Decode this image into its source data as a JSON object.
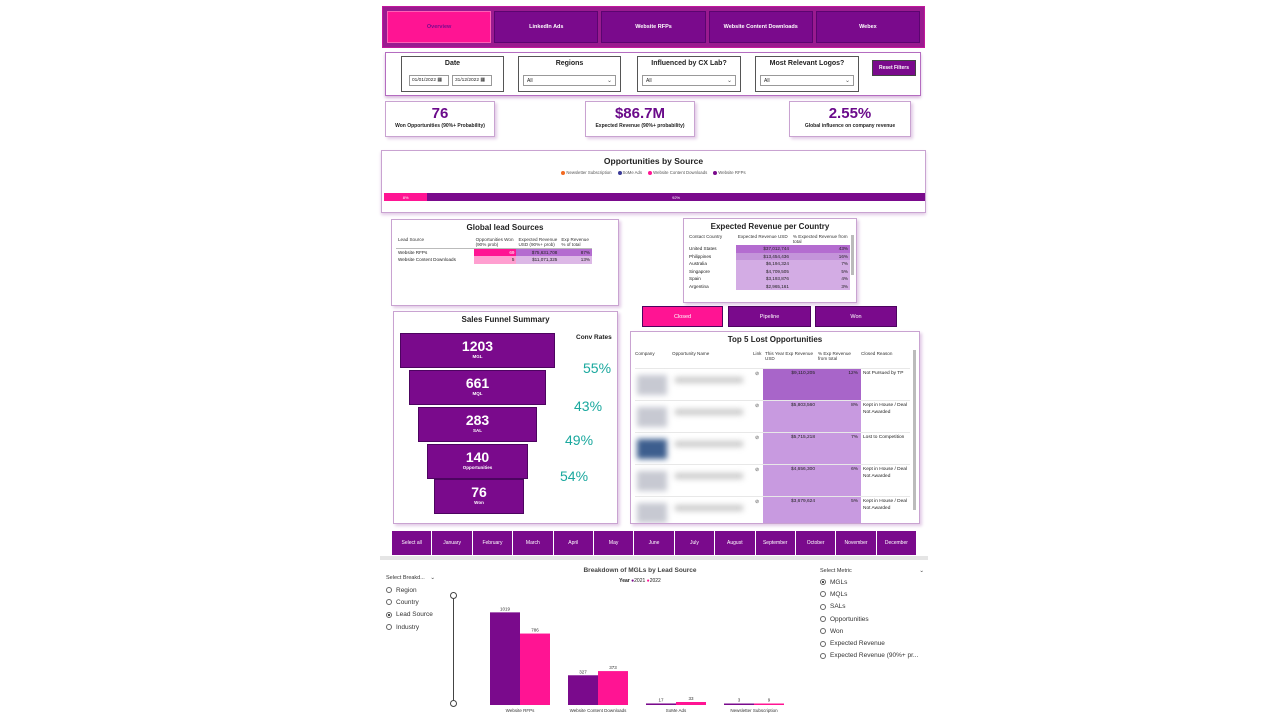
{
  "tabs": [
    "Overview",
    "LinkedIn Ads",
    "Website RFPs",
    "Website Content Downloads",
    "Webex"
  ],
  "filters": {
    "date_label": "Date",
    "date_from": "01/01/2022",
    "date_to": "31/12/2022",
    "regions_label": "Regions",
    "regions_value": "All",
    "cxlab_label": "Influenced by CX Lab?",
    "cxlab_value": "All",
    "logos_label": "Most Relevant Logos?",
    "logos_value": "All",
    "reset_label": "Reset Filters"
  },
  "kpis": [
    {
      "value": "76",
      "label": "Won Opportunities (90%+ Probability)"
    },
    {
      "value": "$86.7M",
      "label": "Expected Revenue (90%+ probability)"
    },
    {
      "value": "2.55%",
      "label": "Global influence on company revenue"
    }
  ],
  "opportunities_by_source": {
    "title": "Opportunities by Source",
    "legend": [
      {
        "name": "Newsletter Subscription",
        "color": "#f26a21"
      },
      {
        "name": "SoMe Ads",
        "color": "#3b3b98"
      },
      {
        "name": "Website Content Downloads",
        "color": "#ff1493"
      },
      {
        "name": "Website RFPs",
        "color": "#7a0a8c"
      }
    ],
    "segments": [
      {
        "name": "Website Content Downloads",
        "label": "8%",
        "value": 8,
        "color": "#ff1493"
      },
      {
        "name": "Website RFPs",
        "label": "92%",
        "value": 92,
        "color": "#7a0a8c"
      }
    ]
  },
  "global_lead": {
    "title": "Global lead Sources",
    "headers": [
      "Lead Source",
      "Opportunities Won (90% prob)",
      "Expected Revenue USD (90%+ prob)",
      "Exp Revenue % of total"
    ],
    "rows": [
      {
        "source": "Website RFPs",
        "won": "69",
        "rev": "$75,631,708",
        "pct": "87%"
      },
      {
        "source": "Website Content Downloads",
        "won": "5",
        "rev": "$11,071,325",
        "pct": "13%"
      }
    ]
  },
  "country": {
    "title": "Expected Revenue per Country",
    "headers": [
      "Contact Country",
      "Expected Revenue USD",
      "% Expected Revenue from total"
    ],
    "rows": [
      {
        "country": "United States",
        "rev": "$37,012,744",
        "pct": "43%"
      },
      {
        "country": "Philippines",
        "rev": "$13,454,436",
        "pct": "16%"
      },
      {
        "country": "Australia",
        "rev": "$6,194,324",
        "pct": "7%"
      },
      {
        "country": "Singapore",
        "rev": "$4,709,505",
        "pct": "5%"
      },
      {
        "country": "Spain",
        "rev": "$3,193,876",
        "pct": "4%"
      },
      {
        "country": "Argentina",
        "rev": "$2,965,161",
        "pct": "3%"
      }
    ]
  },
  "funnel": {
    "title": "Sales Funnel Summary",
    "conv_title": "Conv Rates",
    "stages": [
      {
        "value": "1203",
        "label": "MGL"
      },
      {
        "value": "661",
        "label": "MQL"
      },
      {
        "value": "283",
        "label": "SAL"
      },
      {
        "value": "140",
        "label": "Opportunities"
      },
      {
        "value": "76",
        "label": "Won"
      }
    ],
    "rates": [
      "55%",
      "43%",
      "49%",
      "54%"
    ]
  },
  "status_buttons": [
    "Closed",
    "Pipeline",
    "Won"
  ],
  "lost": {
    "title": "Top 5 Lost Opportunities",
    "headers": [
      "Company",
      "Opportunity Name",
      "Link",
      "This Year Exp Revenue USD",
      "% Exp Revenue from total",
      "Closed Reason"
    ],
    "rows": [
      {
        "rev": "$9,110,205",
        "pct": "12%",
        "reason": "Not Pursued by TP"
      },
      {
        "rev": "$5,803,560",
        "pct": "8%",
        "reason": "Kept in House / Deal Not Awarded"
      },
      {
        "rev": "$5,715,218",
        "pct": "7%",
        "reason": "Lost to Competition"
      },
      {
        "rev": "$4,656,300",
        "pct": "6%",
        "reason": "Kept in House / Deal Not Awarded"
      },
      {
        "rev": "$3,679,624",
        "pct": "5%",
        "reason": "Kept in House / Deal Not Awarded"
      }
    ]
  },
  "months": [
    "Select all",
    "January",
    "February",
    "March",
    "April",
    "May",
    "June",
    "July",
    "August",
    "September",
    "October",
    "November",
    "December"
  ],
  "breakdown_select": {
    "label": "Select Breakd...",
    "options": [
      {
        "label": "Region",
        "on": false
      },
      {
        "label": "Country",
        "on": false
      },
      {
        "label": "Lead Source",
        "on": true
      },
      {
        "label": "Industry",
        "on": false
      }
    ]
  },
  "metric_select": {
    "label": "Select Metric",
    "options": [
      {
        "label": "MGLs",
        "on": true
      },
      {
        "label": "MQLs",
        "on": false
      },
      {
        "label": "SALs",
        "on": false
      },
      {
        "label": "Opportunities",
        "on": false
      },
      {
        "label": "Won",
        "on": false
      },
      {
        "label": "Expected Revenue",
        "on": false
      },
      {
        "label": "Expected Revenue (90%+ pr...",
        "on": false
      }
    ]
  },
  "chart_data": {
    "type": "bar",
    "title": "Breakdown of MGLs by Lead Source",
    "legend_title": "Year",
    "categories": [
      "Website RFPs",
      "Website Content Downloads",
      "SoMe Ads",
      "Newsletter Subscription"
    ],
    "series": [
      {
        "name": "2021",
        "color": "#7a0a8c",
        "values": [
          1019,
          327,
          17,
          3
        ]
      },
      {
        "name": "2022",
        "color": "#ff1493",
        "values": [
          786,
          373,
          33,
          9
        ]
      }
    ],
    "ylim": [
      0,
      1100
    ]
  }
}
